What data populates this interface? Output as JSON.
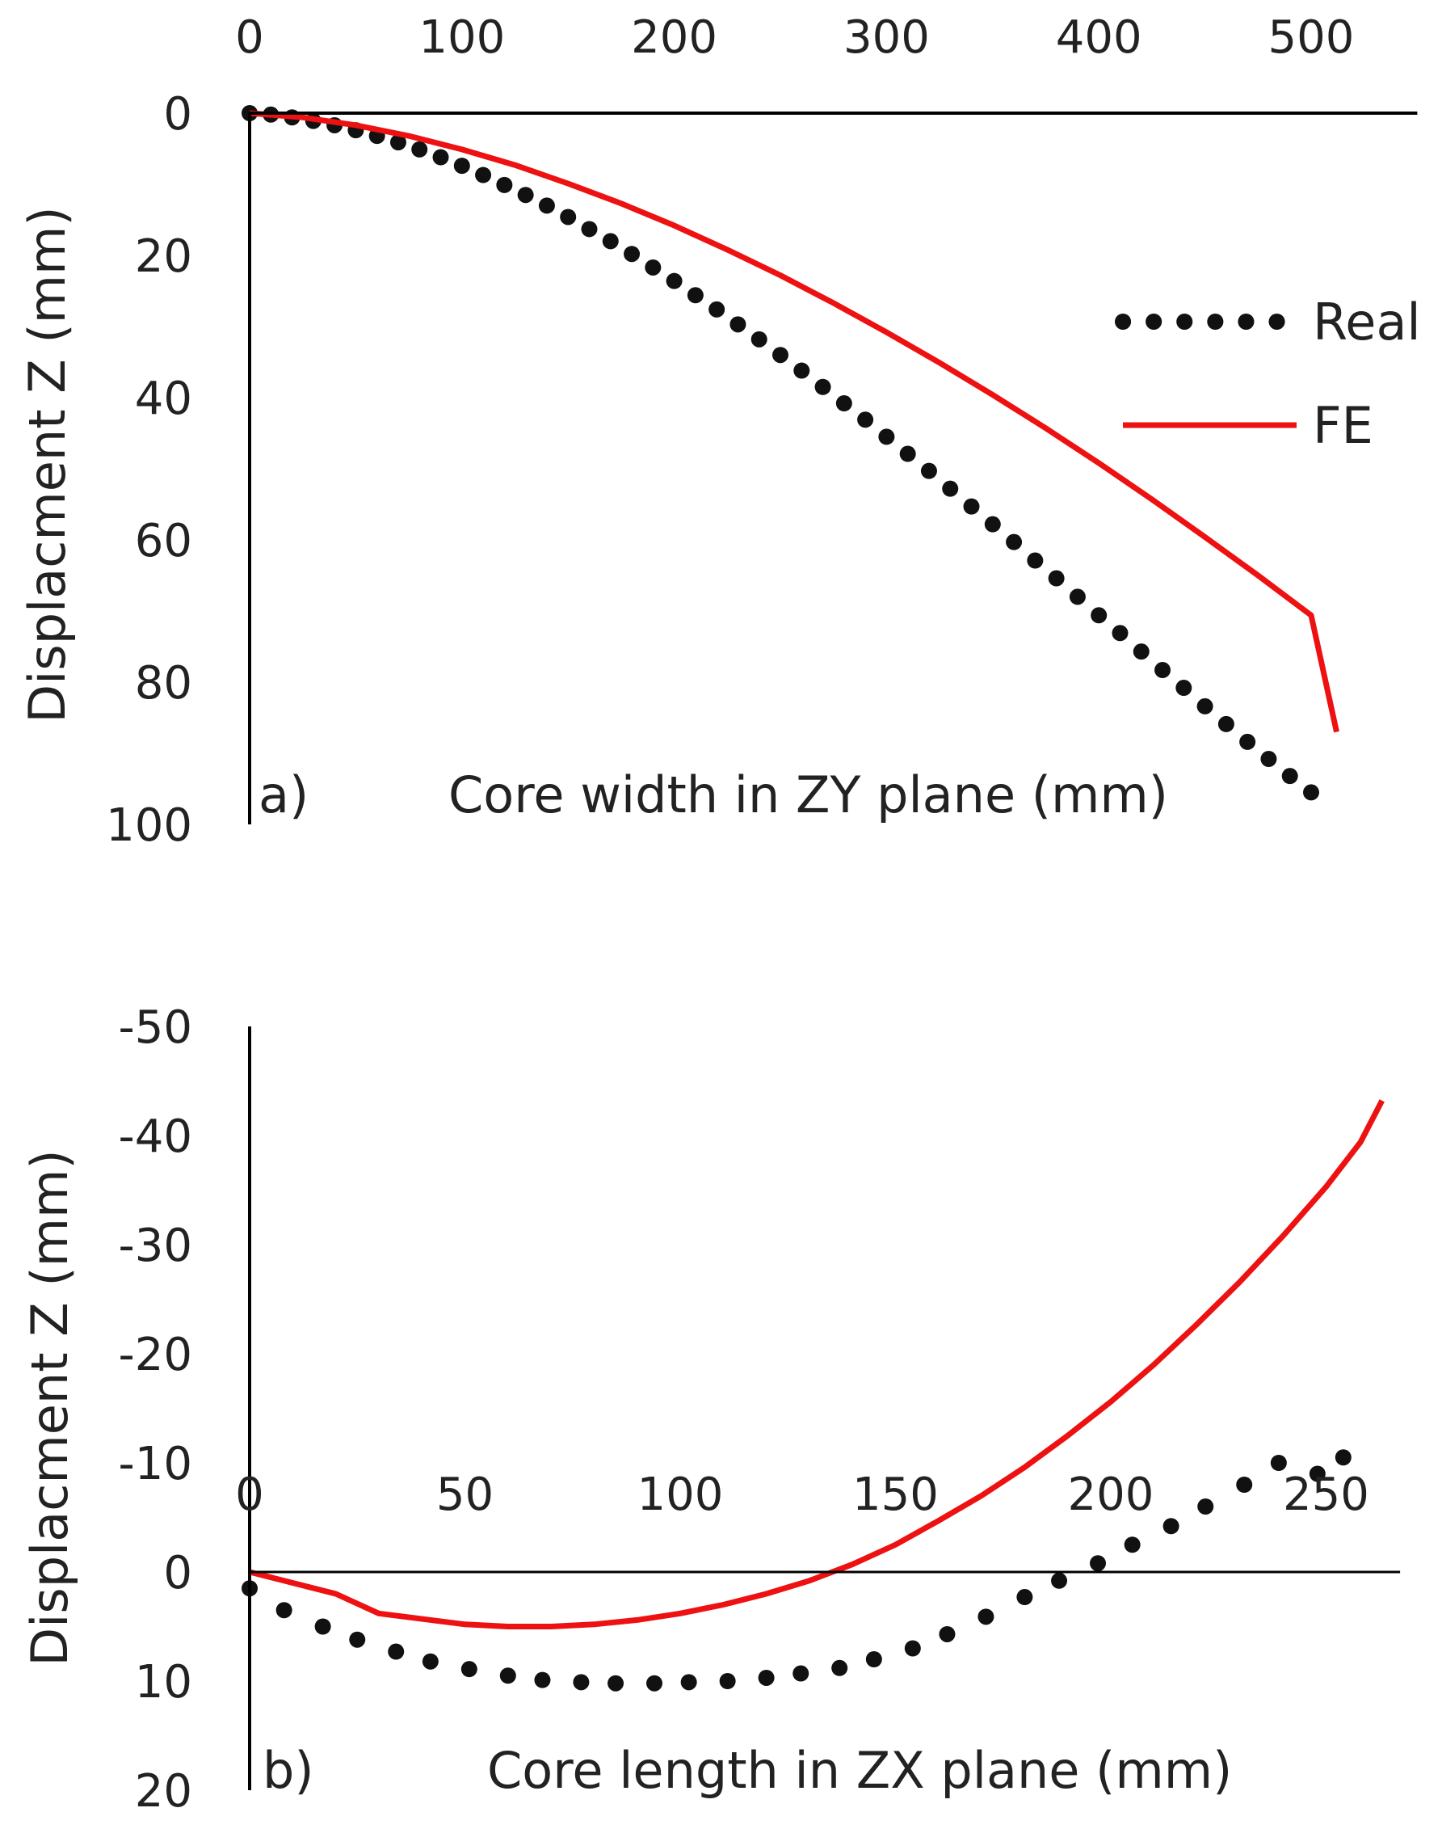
{
  "colors": {
    "real": "#111111",
    "fe": "#ee1111",
    "axis": "#000000",
    "text": "#222222"
  },
  "legend": {
    "real_label": "Real",
    "fe_label": "FE"
  },
  "chart_data": [
    {
      "type": "line",
      "panel_label": "a)",
      "title": "",
      "xlabel": "Core width in ZY plane (mm)",
      "ylabel": "Displacment Z (mm)",
      "xlim": [
        0,
        550
      ],
      "ylim": [
        0,
        100
      ],
      "y_inverted": true,
      "x_axis_position": "top",
      "x_ticks": [
        0,
        100,
        200,
        300,
        400,
        500
      ],
      "y_ticks": [
        0,
        20,
        40,
        60,
        80,
        100
      ],
      "legend_position": "right",
      "series": [
        {
          "name": "Real",
          "style": "dotted",
          "x": [
            0,
            10,
            20,
            30,
            40,
            50,
            60,
            70,
            80,
            90,
            100,
            110,
            120,
            130,
            140,
            150,
            160,
            170,
            180,
            190,
            200,
            210,
            220,
            230,
            240,
            250,
            260,
            270,
            280,
            290,
            300,
            310,
            320,
            330,
            340,
            350,
            360,
            370,
            380,
            390,
            400,
            410,
            420,
            430,
            440,
            450,
            460,
            470,
            480,
            490,
            500
          ],
          "y": [
            0,
            0.2,
            0.6,
            1.1,
            1.7,
            2.4,
            3.2,
            4.1,
            5.1,
            6.2,
            7.4,
            8.7,
            10.1,
            11.5,
            13.0,
            14.6,
            16.3,
            18.0,
            19.8,
            21.7,
            23.6,
            25.6,
            27.6,
            29.7,
            31.8,
            34.0,
            36.2,
            38.5,
            40.8,
            43.1,
            45.5,
            47.9,
            50.3,
            52.8,
            55.3,
            57.8,
            60.3,
            62.9,
            65.4,
            68.0,
            70.6,
            73.1,
            75.7,
            78.3,
            80.8,
            83.4,
            85.9,
            88.4,
            90.8,
            93.2,
            95.5
          ]
        },
        {
          "name": "FE",
          "style": "solid",
          "x": [
            0,
            25,
            50,
            75,
            100,
            125,
            150,
            175,
            200,
            225,
            250,
            275,
            300,
            325,
            350,
            375,
            400,
            425,
            450,
            475,
            500,
            512
          ],
          "y": [
            0,
            0.6,
            1.7,
            3.2,
            5.1,
            7.3,
            9.9,
            12.7,
            15.8,
            19.2,
            22.8,
            26.7,
            30.8,
            35.1,
            39.6,
            44.3,
            49.2,
            54.3,
            59.6,
            65.0,
            70.6,
            87.0
          ]
        }
      ]
    },
    {
      "type": "line",
      "panel_label": "b)",
      "title": "",
      "xlabel": "Core length in ZX plane (mm)",
      "ylabel": "Displacment Z (mm)",
      "xlim": [
        0,
        270
      ],
      "ylim": [
        -50,
        20
      ],
      "y_inverted": false,
      "x_axis_position": "at zero",
      "x_ticks": [
        0,
        50,
        100,
        150,
        200,
        250
      ],
      "y_ticks": [
        -50,
        -40,
        -30,
        -20,
        -10,
        0,
        10,
        20
      ],
      "series": [
        {
          "name": "Real",
          "style": "dotted",
          "x": [
            0,
            8,
            17,
            25,
            34,
            42,
            51,
            60,
            68,
            77,
            85,
            94,
            102,
            111,
            120,
            128,
            137,
            145,
            154,
            162,
            171,
            180,
            188,
            197,
            205,
            214,
            222,
            231,
            239,
            248,
            254
          ],
          "y": [
            1.5,
            3.5,
            5,
            6.2,
            7.3,
            8.2,
            8.9,
            9.5,
            9.9,
            10.1,
            10.2,
            10.2,
            10.1,
            10.0,
            9.7,
            9.3,
            8.8,
            8.0,
            7.0,
            5.7,
            4.1,
            2.3,
            0.8,
            -0.8,
            -2.5,
            -4.2,
            -6.0,
            -8.0,
            -10.0,
            -9.0,
            -10.5
          ]
        },
        {
          "name": "FE",
          "style": "solid",
          "x": [
            0,
            10,
            20,
            30,
            40,
            50,
            60,
            70,
            80,
            90,
            100,
            110,
            120,
            130,
            140,
            150,
            160,
            170,
            180,
            190,
            200,
            210,
            220,
            230,
            240,
            250,
            258,
            263
          ],
          "y": [
            0,
            1.0,
            2.0,
            3.8,
            4.3,
            4.8,
            5.0,
            5.0,
            4.8,
            4.4,
            3.8,
            3.0,
            2.0,
            0.8,
            -0.7,
            -2.5,
            -4.7,
            -7.0,
            -9.6,
            -12.5,
            -15.6,
            -19.0,
            -22.7,
            -26.6,
            -30.8,
            -35.3,
            -39.4,
            -43.2
          ]
        }
      ]
    }
  ]
}
